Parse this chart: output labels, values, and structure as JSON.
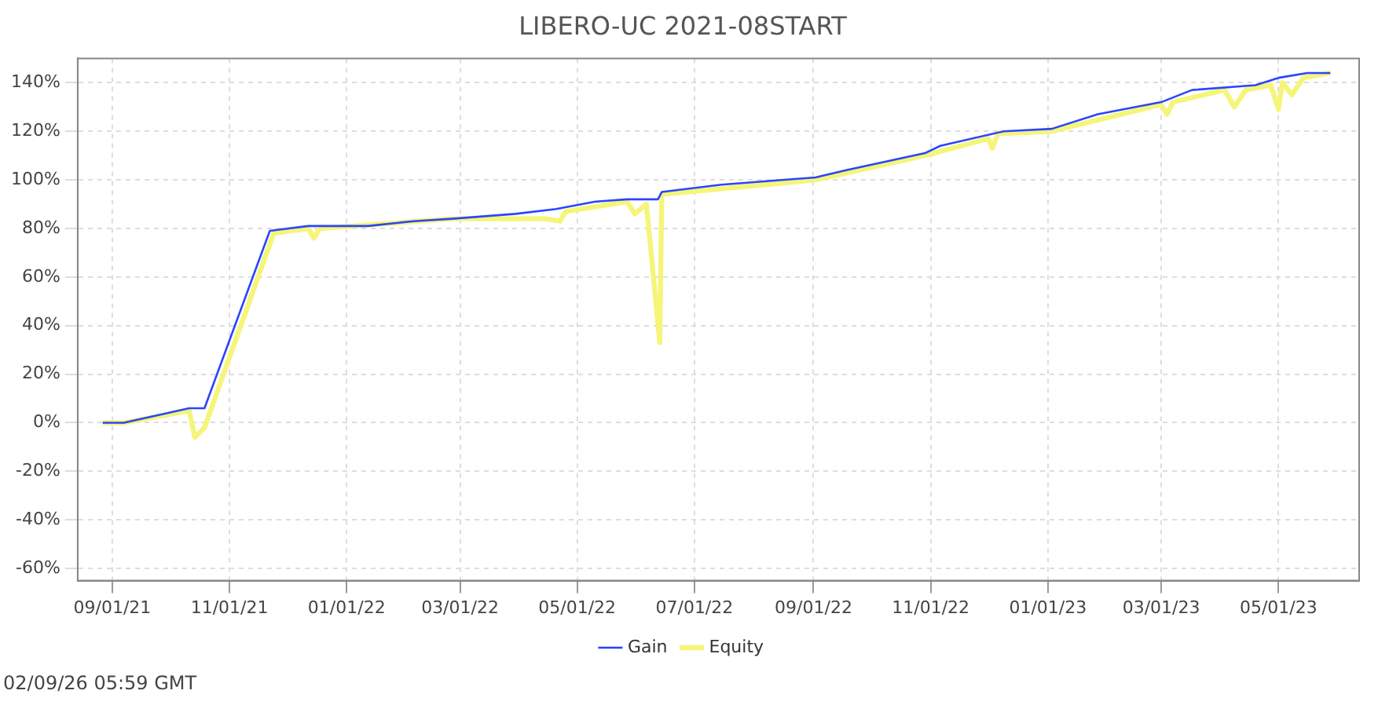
{
  "chart_data": {
    "type": "line",
    "title": "LIBERO-UC 2021-08START",
    "xlim": [
      "2021-08-14",
      "2023-06-12"
    ],
    "xticks": [
      {
        "value": "2021-09-01",
        "label": "09/01/21"
      },
      {
        "value": "2021-11-01",
        "label": "11/01/21"
      },
      {
        "value": "2022-01-01",
        "label": "01/01/22"
      },
      {
        "value": "2022-03-01",
        "label": "03/01/22"
      },
      {
        "value": "2022-05-01",
        "label": "05/01/22"
      },
      {
        "value": "2022-07-01",
        "label": "07/01/22"
      },
      {
        "value": "2022-09-01",
        "label": "09/01/22"
      },
      {
        "value": "2022-11-01",
        "label": "11/01/22"
      },
      {
        "value": "2023-01-01",
        "label": "01/01/23"
      },
      {
        "value": "2023-03-01",
        "label": "03/01/23"
      },
      {
        "value": "2023-05-01",
        "label": "05/01/23"
      }
    ],
    "ylim": [
      -65,
      150
    ],
    "yticks": [
      {
        "value": -60,
        "label": "-60%"
      },
      {
        "value": -40,
        "label": "-40%"
      },
      {
        "value": -20,
        "label": "-20%"
      },
      {
        "value": 0,
        "label": "0%"
      },
      {
        "value": 20,
        "label": "20%"
      },
      {
        "value": 40,
        "label": "40%"
      },
      {
        "value": 60,
        "label": "60%"
      },
      {
        "value": 80,
        "label": "80%"
      },
      {
        "value": 100,
        "label": "100%"
      },
      {
        "value": 120,
        "label": "120%"
      },
      {
        "value": 140,
        "label": "140%"
      }
    ],
    "grid": true,
    "legend": "bottom",
    "marker": "none",
    "line_style": "solid",
    "annotations": [
      "02/09/26 05:59 GMT"
    ],
    "series": [
      {
        "name": "Gain",
        "color": "#2a45ff",
        "x": [
          "2021-08-27",
          "2021-09-07",
          "2021-10-11",
          "2021-10-19",
          "2021-11-22",
          "2021-12-12",
          "2022-01-12",
          "2022-02-05",
          "2022-02-25",
          "2022-03-30",
          "2022-04-20",
          "2022-05-10",
          "2022-05-27",
          "2022-06-12",
          "2022-06-14",
          "2022-07-15",
          "2022-09-02",
          "2022-09-18",
          "2022-10-29",
          "2022-11-06",
          "2022-12-09",
          "2023-01-03",
          "2023-01-27",
          "2023-03-01",
          "2023-03-17",
          "2023-04-19",
          "2023-05-01",
          "2023-05-16",
          "2023-05-28"
        ],
        "values": [
          0,
          0,
          6,
          6,
          79,
          81,
          81,
          83,
          84,
          86,
          88,
          91,
          92,
          92,
          95,
          98,
          101,
          104,
          111,
          114,
          120,
          121,
          127,
          132,
          137,
          139,
          142,
          144,
          144
        ]
      },
      {
        "name": "Equity",
        "color": "#f5f57a",
        "x": [
          "2021-08-27",
          "2021-09-07",
          "2021-10-11",
          "2021-10-14",
          "2021-10-19",
          "2021-11-24",
          "2021-12-12",
          "2021-12-15",
          "2021-12-18",
          "2022-02-25",
          "2022-04-14",
          "2022-04-22",
          "2022-04-25",
          "2022-05-27",
          "2022-05-31",
          "2022-06-06",
          "2022-06-13",
          "2022-06-14",
          "2022-09-02",
          "2022-10-29",
          "2022-12-01",
          "2022-12-03",
          "2022-12-06",
          "2023-01-03",
          "2023-03-01",
          "2023-03-04",
          "2023-03-07",
          "2023-04-03",
          "2023-04-08",
          "2023-04-14",
          "2023-04-27",
          "2023-05-01",
          "2023-05-03",
          "2023-05-08",
          "2023-05-14",
          "2023-05-28"
        ],
        "values": [
          0,
          0,
          5,
          -6,
          -2,
          78,
          80,
          76,
          80,
          84,
          84,
          83,
          87,
          91,
          86,
          90,
          33,
          94,
          100,
          110,
          117,
          113,
          119,
          120,
          131,
          127,
          132,
          137,
          130,
          137,
          139,
          129,
          140,
          135,
          142,
          144
        ]
      }
    ]
  }
}
